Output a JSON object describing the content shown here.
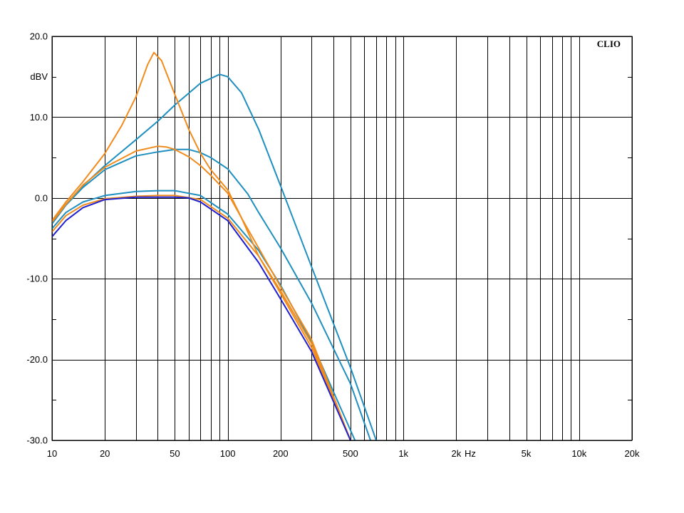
{
  "chart_data": {
    "type": "line",
    "title": "",
    "brand": "CLIO",
    "xlabel": "Hz",
    "ylabel": "dBV",
    "x_scale": "log",
    "xlim": [
      10,
      20000
    ],
    "ylim": [
      -30,
      20
    ],
    "grid": true,
    "x_tick_labels": [
      {
        "value": 10,
        "label": "10"
      },
      {
        "value": 20,
        "label": "20"
      },
      {
        "value": 50,
        "label": "50"
      },
      {
        "value": 100,
        "label": "100"
      },
      {
        "value": 200,
        "label": "200"
      },
      {
        "value": 500,
        "label": "500"
      },
      {
        "value": 1000,
        "label": "1k"
      },
      {
        "value": 2000,
        "label": "2k"
      },
      {
        "value": 5000,
        "label": "5k"
      },
      {
        "value": 10000,
        "label": "10k"
      },
      {
        "value": 20000,
        "label": "20k"
      }
    ],
    "y_tick_labels": [
      {
        "value": 20,
        "label": "20.0"
      },
      {
        "value": 10,
        "label": "10.0"
      },
      {
        "value": 0,
        "label": "0.0"
      },
      {
        "value": -10,
        "label": "-10.0"
      },
      {
        "value": -20,
        "label": "-20.0"
      },
      {
        "value": -30,
        "label": "-30.0"
      }
    ],
    "series": [
      {
        "color": "#1f8fbf",
        "points": [
          [
            10,
            -3
          ],
          [
            12,
            -0.8
          ],
          [
            15,
            1.5
          ],
          [
            20,
            4
          ],
          [
            30,
            7.2
          ],
          [
            40,
            9.5
          ],
          [
            50,
            11.5
          ],
          [
            70,
            14.2
          ],
          [
            90,
            15.3
          ],
          [
            100,
            15
          ],
          [
            120,
            13
          ],
          [
            150,
            8.5
          ],
          [
            200,
            1.5
          ],
          [
            300,
            -8.5
          ],
          [
            500,
            -21
          ],
          [
            700,
            -30
          ]
        ]
      },
      {
        "color": "#1f8fbf",
        "points": [
          [
            10,
            -3.2
          ],
          [
            12,
            -0.9
          ],
          [
            15,
            1.3
          ],
          [
            20,
            3.5
          ],
          [
            30,
            5.2
          ],
          [
            40,
            5.7
          ],
          [
            50,
            6
          ],
          [
            60,
            6
          ],
          [
            70,
            5.6
          ],
          [
            80,
            5
          ],
          [
            100,
            3.6
          ],
          [
            130,
            0.5
          ],
          [
            150,
            -1.8
          ],
          [
            200,
            -6.2
          ],
          [
            300,
            -13
          ],
          [
            500,
            -23
          ],
          [
            650,
            -30
          ]
        ]
      },
      {
        "color": "#1f8fbf",
        "points": [
          [
            10,
            -3.8
          ],
          [
            12,
            -1.8
          ],
          [
            15,
            -0.5
          ],
          [
            20,
            0.3
          ],
          [
            30,
            0.8
          ],
          [
            40,
            0.9
          ],
          [
            50,
            0.9
          ],
          [
            70,
            0.3
          ],
          [
            100,
            -2
          ],
          [
            150,
            -6.5
          ],
          [
            200,
            -10.8
          ],
          [
            300,
            -17.8
          ],
          [
            400,
            -24
          ],
          [
            530,
            -30
          ]
        ]
      },
      {
        "color": "#f08c1e",
        "points": [
          [
            10,
            -2.8
          ],
          [
            12,
            -0.5
          ],
          [
            15,
            2
          ],
          [
            20,
            5.5
          ],
          [
            25,
            9
          ],
          [
            30,
            12.5
          ],
          [
            35,
            16.5
          ],
          [
            38,
            18
          ],
          [
            42,
            17
          ],
          [
            50,
            12.8
          ],
          [
            60,
            8.5
          ],
          [
            70,
            5.5
          ],
          [
            80,
            3.5
          ],
          [
            100,
            1
          ],
          [
            120,
            -2.5
          ],
          [
            150,
            -7.2
          ],
          [
            200,
            -11.8
          ],
          [
            300,
            -18.5
          ],
          [
            500,
            -30
          ]
        ]
      },
      {
        "color": "#f08c1e",
        "points": [
          [
            10,
            -3
          ],
          [
            12,
            -0.8
          ],
          [
            15,
            1.6
          ],
          [
            20,
            3.8
          ],
          [
            30,
            5.8
          ],
          [
            40,
            6.4
          ],
          [
            45,
            6.3
          ],
          [
            50,
            6
          ],
          [
            60,
            5.1
          ],
          [
            70,
            4
          ],
          [
            80,
            2.8
          ],
          [
            100,
            0.6
          ],
          [
            120,
            -2.5
          ],
          [
            150,
            -6.2
          ],
          [
            200,
            -11
          ],
          [
            300,
            -17.5
          ],
          [
            500,
            -30
          ]
        ]
      },
      {
        "color": "#f08c1e",
        "points": [
          [
            10,
            -4.2
          ],
          [
            12,
            -2.2
          ],
          [
            15,
            -0.9
          ],
          [
            20,
            -0.1
          ],
          [
            30,
            0.2
          ],
          [
            40,
            0.3
          ],
          [
            50,
            0.3
          ],
          [
            70,
            -0.2
          ],
          [
            100,
            -2.5
          ],
          [
            150,
            -7.2
          ],
          [
            200,
            -11.5
          ],
          [
            300,
            -18
          ],
          [
            500,
            -30
          ]
        ]
      },
      {
        "color": "#2020d0",
        "points": [
          [
            10,
            -4.8
          ],
          [
            12,
            -2.8
          ],
          [
            15,
            -1.2
          ],
          [
            20,
            -0.2
          ],
          [
            30,
            0.1
          ],
          [
            40,
            0.1
          ],
          [
            50,
            0.1
          ],
          [
            60,
            0
          ],
          [
            70,
            -0.5
          ],
          [
            100,
            -2.8
          ],
          [
            150,
            -8
          ],
          [
            200,
            -12.5
          ],
          [
            300,
            -19
          ],
          [
            500,
            -30
          ]
        ]
      }
    ]
  }
}
